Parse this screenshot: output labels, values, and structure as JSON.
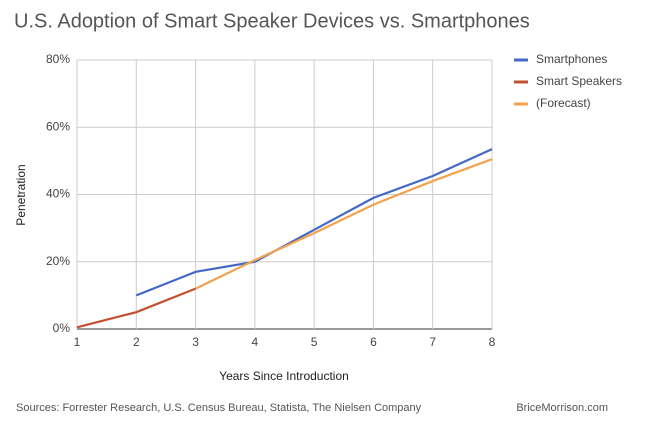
{
  "chart_data": {
    "type": "line",
    "title": "U.S. Adoption of Smart Speaker Devices vs. Smartphones",
    "x_label": "Years Since Introduction",
    "y_label": "Penetration",
    "x": [
      1,
      2,
      3,
      4,
      5,
      6,
      7,
      8
    ],
    "xlim": [
      1,
      8
    ],
    "xticks": [
      1,
      2,
      3,
      4,
      5,
      6,
      7,
      8
    ],
    "ylim": [
      0,
      80
    ],
    "yticks": [
      {
        "value": 0,
        "label": "0%"
      },
      {
        "value": 20,
        "label": "20%"
      },
      {
        "value": 40,
        "label": "40%"
      },
      {
        "value": 60,
        "label": "60%"
      },
      {
        "value": 80,
        "label": "80%"
      }
    ],
    "grid": true,
    "legend": "right",
    "series": [
      {
        "name": "Smartphones",
        "color": "#4468c6",
        "values": [
          null,
          10,
          17,
          20,
          29.5,
          39,
          45.5,
          53.5
        ]
      },
      {
        "name": "Smart Speakers",
        "color": "#c2512f",
        "values": [
          0.5,
          5,
          12,
          null,
          null,
          null,
          null,
          null
        ]
      },
      {
        "name": "(Forecast)",
        "color": "#f2a24e",
        "values": [
          null,
          null,
          12,
          20.5,
          28.5,
          37,
          44,
          50.5
        ]
      }
    ],
    "sources": "Sources: Forrester Research, U.S. Census Bureau, Statista, The Nielsen Company",
    "credit": "BriceMorrison.com"
  }
}
